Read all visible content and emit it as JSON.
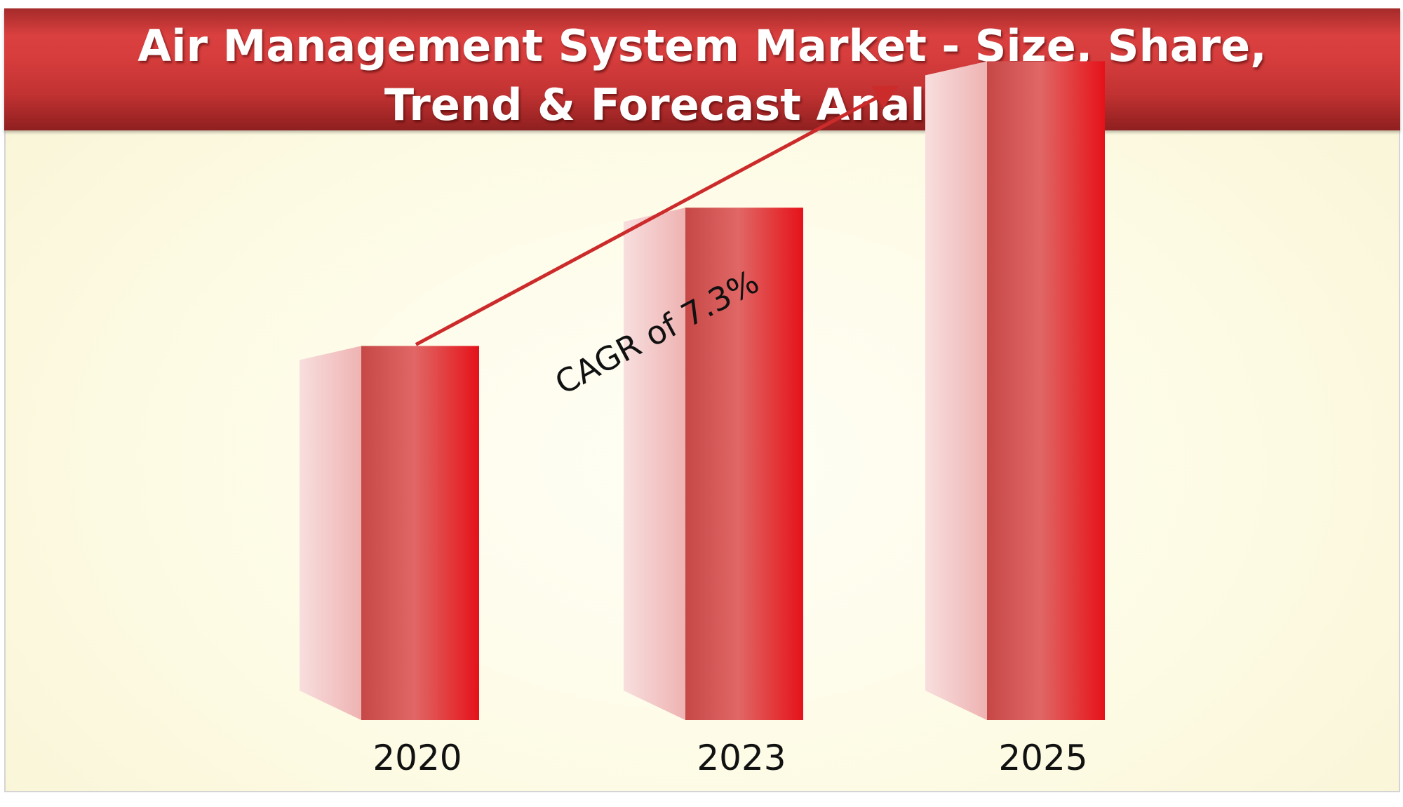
{
  "title": {
    "line1": "Air Management System Market - Size, Share,",
    "line2": "Trend & Forecast Analysis"
  },
  "chart_data": {
    "type": "bar",
    "categories": [
      "2020",
      "2023",
      "2025"
    ],
    "values": [
      46,
      63,
      81
    ],
    "annotation": "CAGR of 7.3%",
    "grid": false,
    "legend": "none"
  },
  "colors": {
    "header": "#c83636",
    "bar_front_dark": "#c9504f",
    "bar_front_light": "#e16a68",
    "bar_front_edge": "#e5161a",
    "bar_side": "#f4c4c4",
    "arrow": "#cc2b2b"
  }
}
